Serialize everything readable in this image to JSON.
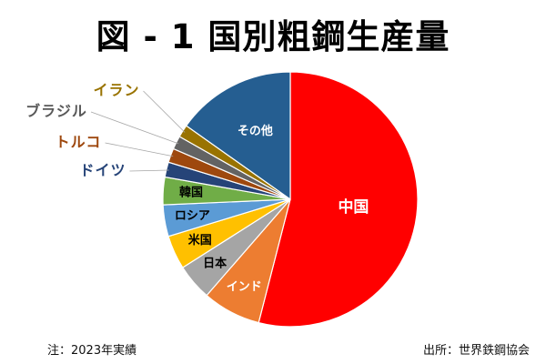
{
  "title": "図 - 1 国別粗鋼生産量",
  "note": "注：2023年実績",
  "source": "出所：世界鉄鋼協会",
  "chart_data": {
    "type": "pie",
    "title": "図 - 1 国別粗鋼生産量",
    "slices": [
      {
        "label": "中国",
        "value": 54.0,
        "color": "#ff0000",
        "label_color": "#ffffff",
        "label_place": "inside"
      },
      {
        "label": "インド",
        "value": 7.4,
        "color": "#ed7d31",
        "label_color": "#ffffff",
        "label_place": "inside"
      },
      {
        "label": "日本",
        "value": 4.6,
        "color": "#a5a5a5",
        "label_color": "#000000",
        "label_place": "inside"
      },
      {
        "label": "米国",
        "value": 4.3,
        "color": "#ffc000",
        "label_color": "#000000",
        "label_place": "inside"
      },
      {
        "label": "ロシア",
        "value": 4.0,
        "color": "#5b9bd5",
        "label_color": "#000000",
        "label_place": "inside"
      },
      {
        "label": "韓国",
        "value": 3.5,
        "color": "#70ad47",
        "label_color": "#000000",
        "label_place": "inside"
      },
      {
        "label": "ドイツ",
        "value": 1.9,
        "color": "#264478",
        "label_color": "#264478",
        "label_place": "outside"
      },
      {
        "label": "トルコ",
        "value": 1.8,
        "color": "#9e480e",
        "label_color": "#9e480e",
        "label_place": "outside"
      },
      {
        "label": "ブラジル",
        "value": 1.7,
        "color": "#636363",
        "label_color": "#595959",
        "label_place": "outside"
      },
      {
        "label": "イラン",
        "value": 1.6,
        "color": "#997300",
        "label_color": "#997300",
        "label_place": "outside"
      },
      {
        "label": "その他",
        "value": 15.2,
        "color": "#255e91",
        "label_color": "#ffffff",
        "label_place": "inside"
      }
    ],
    "legend": "none",
    "start_angle_deg": 0,
    "direction": "clockwise"
  }
}
